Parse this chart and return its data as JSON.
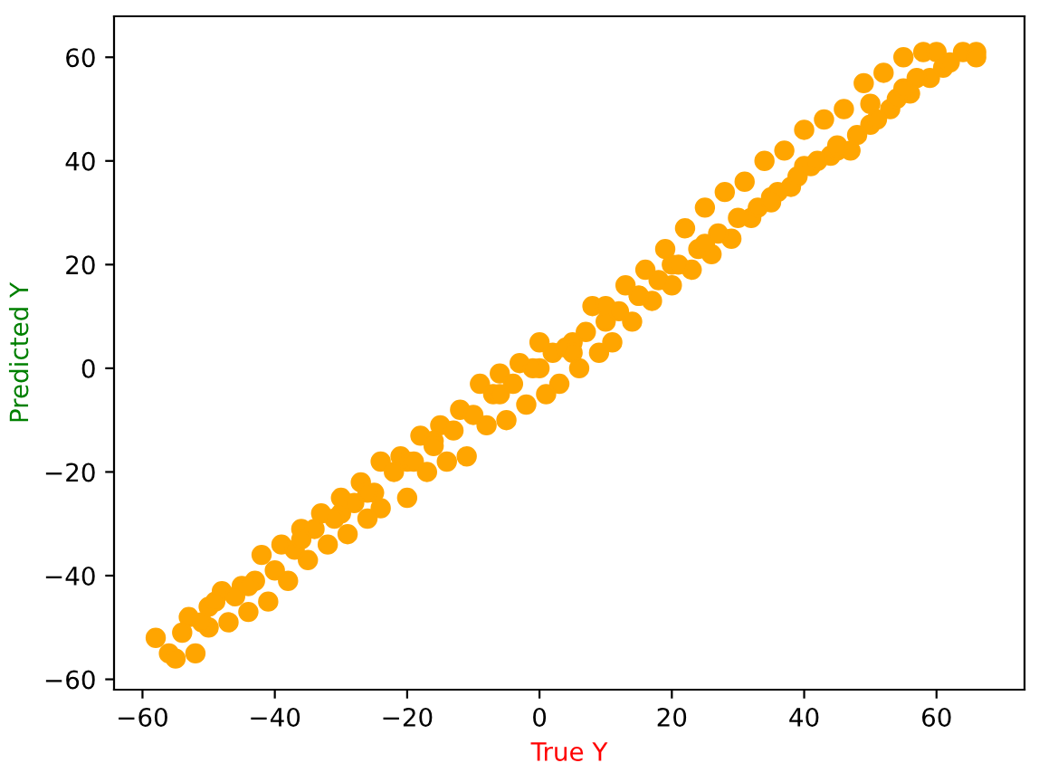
{
  "chart_data": {
    "type": "scatter",
    "xlabel": "True Y",
    "ylabel": "Predicted Y",
    "xlim": [
      -64.3,
      73.3
    ],
    "ylim": [
      -62,
      67.9
    ],
    "xticks": [
      {
        "value": -60,
        "label": "−60"
      },
      {
        "value": -40,
        "label": "−40"
      },
      {
        "value": -20,
        "label": "−20"
      },
      0,
      20,
      40,
      60
    ],
    "yticks": [
      {
        "value": -60,
        "label": "−60"
      },
      {
        "value": -40,
        "label": "−40"
      },
      {
        "value": -20,
        "label": "−20"
      },
      0,
      20,
      40,
      60
    ],
    "marker": "circle",
    "grid": false,
    "legend": false,
    "series": [
      {
        "color": "#ffa500",
        "x": [
          -58,
          -56,
          -55,
          -53,
          -52,
          -50,
          -48,
          -47,
          -45,
          -44,
          -42,
          -41,
          -39,
          -38,
          -36,
          -35,
          -33,
          -32,
          -30,
          -29,
          -27,
          -26,
          -24,
          -24,
          -21,
          -20,
          -18,
          -17,
          -15,
          -14,
          -12,
          -11,
          -9,
          -8,
          -6,
          -5,
          -3,
          -2,
          0,
          1,
          2,
          3,
          5,
          6,
          8,
          9,
          10,
          11,
          13,
          14,
          16,
          17,
          19,
          20,
          22,
          23,
          25,
          26,
          28,
          29,
          31,
          32,
          34,
          35,
          37,
          38,
          40,
          41,
          43,
          44,
          46,
          47,
          49,
          50,
          52,
          53,
          55,
          56,
          58,
          59,
          60,
          61,
          64,
          66,
          66,
          -50,
          -40,
          -30,
          -20,
          -10,
          0,
          10,
          20,
          30,
          40,
          50,
          57,
          -54,
          -51,
          -46,
          -43,
          -37,
          -34,
          -31,
          -28,
          -25,
          -22,
          -19,
          -16,
          -13,
          -7,
          -4,
          -1,
          4,
          7,
          12,
          15,
          18,
          21,
          24,
          27,
          33,
          36,
          39,
          42,
          45,
          48,
          51,
          54,
          62,
          -49,
          -44,
          -36,
          -26,
          -16,
          -6,
          5,
          15,
          25,
          35,
          45,
          55
        ],
        "values": [
          -52,
          -55,
          -56,
          -48,
          -55,
          -50,
          -43,
          -49,
          -42,
          -47,
          -36,
          -45,
          -34,
          -41,
          -31,
          -37,
          -28,
          -34,
          -25,
          -32,
          -22,
          -29,
          -18,
          -27,
          -17,
          -25,
          -13,
          -20,
          -11,
          -18,
          -8,
          -17,
          -3,
          -11,
          -1,
          -10,
          1,
          -7,
          5,
          -5,
          3,
          -3,
          5,
          0,
          12,
          3,
          12,
          5,
          16,
          9,
          19,
          13,
          23,
          16,
          27,
          19,
          31,
          22,
          34,
          25,
          36,
          29,
          40,
          33,
          42,
          35,
          46,
          39,
          48,
          41,
          50,
          42,
          55,
          47,
          57,
          50,
          60,
          53,
          61,
          56,
          61,
          58,
          61,
          61,
          60,
          -46,
          -39,
          -28,
          -18,
          -9,
          0,
          9,
          20,
          29,
          39,
          51,
          56,
          -51,
          -49,
          -44,
          -41,
          -35,
          -31,
          -29,
          -26,
          -24,
          -20,
          -18,
          -14,
          -12,
          -5,
          -3,
          0,
          4,
          7,
          11,
          14,
          17,
          20,
          23,
          26,
          31,
          34,
          37,
          40,
          42,
          45,
          48,
          52,
          59,
          -45,
          -42,
          -33,
          -24,
          -15,
          -5,
          3,
          14,
          24,
          32,
          43,
          54
        ]
      }
    ]
  }
}
